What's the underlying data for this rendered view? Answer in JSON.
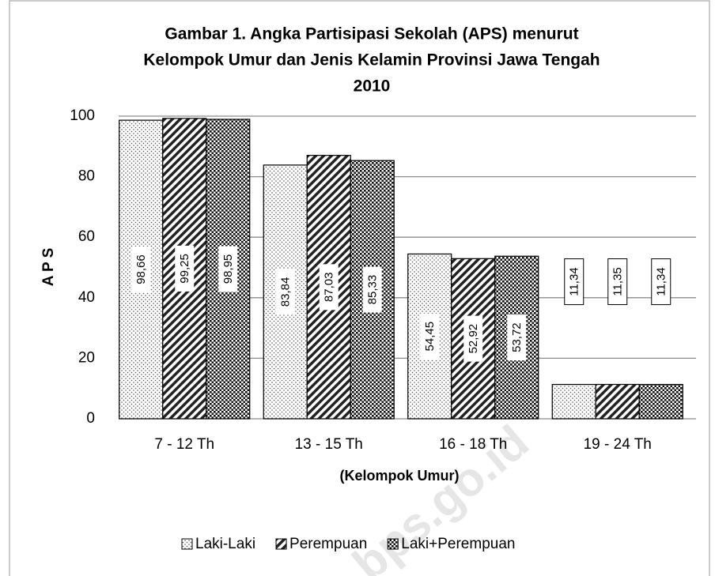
{
  "chart_data": {
    "type": "bar",
    "title": [
      "Gambar 1. Angka Partisipasi Sekolah (APS) menurut",
      "Kelompok Umur dan Jenis Kelamin Provinsi Jawa Tengah",
      "2010"
    ],
    "y_label": "A P S",
    "x_label": "(Kelompok Umur)",
    "watermark": "bps.go.id",
    "categories": [
      "7 - 12 Th",
      "13 - 15 Th",
      "16 - 18 Th",
      "19 - 24 Th"
    ],
    "series": [
      {
        "name": "Laki-Laki",
        "color": "#000000",
        "pattern": "light-dots",
        "values": [
          98.66,
          83.84,
          54.45,
          11.34
        ],
        "value_labels": [
          "98,66",
          "83,84",
          "54,45",
          "11,34"
        ]
      },
      {
        "name": "Perempuan",
        "color": "#000000",
        "pattern": "diagonal",
        "values": [
          99.25,
          87.03,
          52.92,
          11.35
        ],
        "value_labels": [
          "99,25",
          "87,03",
          "52,92",
          "11,35"
        ]
      },
      {
        "name": "Laki+Perempuan",
        "color": "#000000",
        "pattern": "dense-dots",
        "values": [
          98.95,
          85.33,
          53.72,
          11.34
        ],
        "value_labels": [
          "98,95",
          "85,33",
          "53,72",
          "11,34"
        ]
      }
    ],
    "ylim": [
      0,
      100
    ],
    "yticks": [
      0,
      20,
      40,
      60,
      80,
      100
    ],
    "grid": true,
    "legend": "bottom"
  }
}
